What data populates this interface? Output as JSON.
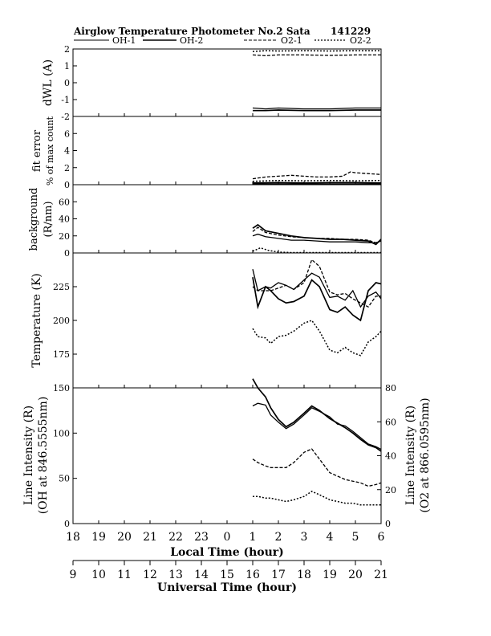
{
  "header": {
    "title": "Airglow Temperature Photometer No.2  Sata",
    "date": "141229"
  },
  "legend": [
    {
      "name": "OH-1",
      "dash": "solid",
      "width": 1
    },
    {
      "name": "OH-2",
      "dash": "solid",
      "width": 1.4
    },
    {
      "name": "O2-1",
      "dash": "dashed",
      "width": 1
    },
    {
      "name": "O2-2",
      "dash": "dotted",
      "width": 1.2
    }
  ],
  "xaxes": {
    "local": {
      "label": "Local Time (hour)",
      "ticks": [
        "18",
        "19",
        "20",
        "21",
        "22",
        "23",
        "0",
        "1",
        "2",
        "3",
        "4",
        "5",
        "6"
      ]
    },
    "universal": {
      "label": "Universal Time (hour)",
      "ticks": [
        "9",
        "10",
        "11",
        "12",
        "13",
        "14",
        "15",
        "16",
        "17",
        "18",
        "19",
        "20",
        "21"
      ]
    }
  },
  "chart_data": [
    {
      "type": "line",
      "panel": "dwl",
      "ylabel": "dWL (A)",
      "ylim": [
        -2,
        2
      ],
      "yticks": [
        "2",
        "1",
        "0",
        "-1",
        "-2"
      ],
      "x_unit": "local hour, 18 = 0, 30 = 6",
      "series": [
        {
          "legend": "OH-1",
          "x": [
            25.0,
            25.5,
            26.0,
            27.0,
            28.0,
            29.0,
            30.0
          ],
          "values": [
            -1.5,
            -1.55,
            -1.5,
            -1.55,
            -1.55,
            -1.5,
            -1.5
          ]
        },
        {
          "legend": "OH-2",
          "x": [
            25.0,
            25.5,
            26.0,
            27.0,
            28.0,
            29.0,
            30.0
          ],
          "values": [
            -1.65,
            -1.65,
            -1.62,
            -1.65,
            -1.65,
            -1.62,
            -1.62
          ]
        },
        {
          "legend": "O2-1",
          "x": [
            25.0,
            25.5,
            26.0,
            27.0,
            28.0,
            29.0,
            30.0
          ],
          "values": [
            1.65,
            1.6,
            1.65,
            1.65,
            1.62,
            1.65,
            1.65
          ]
        },
        {
          "legend": "O2-2",
          "x": [
            25.0,
            25.5,
            26.0,
            27.0,
            28.0,
            29.0,
            30.0
          ],
          "values": [
            1.85,
            1.9,
            1.88,
            1.9,
            1.88,
            1.9,
            1.9
          ]
        }
      ]
    },
    {
      "type": "line",
      "panel": "fit",
      "ylabel": "fit error",
      "ylabel2": "% of max count",
      "ylim": [
        0,
        8
      ],
      "yticks": [
        "6",
        "4",
        "2",
        "0"
      ],
      "series": [
        {
          "legend": "OH-1",
          "x": [
            25.0,
            26.0,
            27.0,
            28.0,
            29.0,
            30.0
          ],
          "values": [
            0.1,
            0.1,
            0.1,
            0.1,
            0.1,
            0.1
          ]
        },
        {
          "legend": "OH-2",
          "x": [
            25.0,
            26.0,
            27.0,
            28.0,
            29.0,
            30.0
          ],
          "values": [
            0.2,
            0.25,
            0.2,
            0.25,
            0.25,
            0.2
          ]
        },
        {
          "legend": "O2-1",
          "x": [
            25.0,
            25.5,
            26.0,
            26.5,
            27.0,
            27.5,
            28.0,
            28.5,
            28.8,
            29.0,
            29.5,
            30.0
          ],
          "values": [
            0.7,
            0.9,
            1.0,
            1.1,
            1.0,
            0.9,
            0.9,
            1.0,
            1.5,
            1.4,
            1.3,
            1.2
          ]
        },
        {
          "legend": "O2-2",
          "x": [
            25.0,
            26.0,
            27.0,
            28.0,
            29.0,
            30.0
          ],
          "values": [
            0.4,
            0.5,
            0.45,
            0.5,
            0.45,
            0.5
          ]
        }
      ]
    },
    {
      "type": "line",
      "panel": "background",
      "ylabel": "background",
      "ylabel2": "(R/nm)",
      "ylim": [
        0,
        80
      ],
      "yticks": [
        "60",
        "40",
        "20",
        "0"
      ],
      "series": [
        {
          "legend": "OH-1",
          "x": [
            25.0,
            25.2,
            25.5,
            26.0,
            26.5,
            27.0,
            27.5,
            28.0,
            28.5,
            29.0,
            29.5,
            29.8,
            30.0
          ],
          "values": [
            20,
            22,
            19,
            17,
            15,
            15,
            14,
            13,
            13,
            13,
            12,
            12,
            14
          ]
        },
        {
          "legend": "OH-2",
          "x": [
            25.0,
            25.2,
            25.5,
            26.0,
            26.5,
            27.0,
            27.5,
            28.0,
            28.5,
            29.0,
            29.5,
            29.8,
            30.0
          ],
          "values": [
            29,
            33,
            26,
            23,
            20,
            18,
            17,
            16,
            16,
            15,
            14,
            10,
            16
          ]
        },
        {
          "legend": "O2-1",
          "x": [
            25.0,
            25.2,
            25.5,
            26.0,
            26.5,
            27.0,
            27.5,
            28.0,
            28.5,
            29.0,
            29.5,
            29.8,
            30.0
          ],
          "values": [
            25,
            30,
            24,
            21,
            19,
            18,
            17,
            17,
            16,
            16,
            15,
            12,
            15
          ]
        },
        {
          "legend": "O2-2",
          "x": [
            25.0,
            25.3,
            25.6,
            26.0,
            26.5,
            27.0,
            27.5,
            28.0,
            28.5,
            29.0,
            29.5,
            30.0
          ],
          "values": [
            2,
            6,
            3,
            1,
            0.5,
            0.5,
            0.5,
            0.5,
            0.5,
            0.5,
            0.5,
            0.5
          ]
        }
      ]
    },
    {
      "type": "line",
      "panel": "temperature",
      "ylabel": "Temperature (K)",
      "ylim": [
        150,
        250
      ],
      "yticks": [
        "225",
        "200",
        "175"
      ],
      "series": [
        {
          "legend": "OH-1",
          "x": [
            25.0,
            25.2,
            25.5,
            25.7,
            26.0,
            26.3,
            26.6,
            27.0,
            27.3,
            27.6,
            28.0,
            28.3,
            28.6,
            28.9,
            29.2,
            29.5,
            29.8,
            30.0
          ],
          "values": [
            238,
            222,
            225,
            224,
            228,
            226,
            223,
            230,
            235,
            232,
            217,
            218,
            215,
            222,
            210,
            218,
            221,
            216
          ]
        },
        {
          "legend": "OH-2",
          "x": [
            25.0,
            25.2,
            25.5,
            25.7,
            26.0,
            26.3,
            26.6,
            27.0,
            27.3,
            27.6,
            28.0,
            28.3,
            28.6,
            28.9,
            29.2,
            29.5,
            29.8,
            30.0
          ],
          "values": [
            232,
            210,
            225,
            222,
            216,
            213,
            214,
            218,
            230,
            225,
            208,
            206,
            210,
            204,
            200,
            222,
            228,
            227
          ]
        },
        {
          "legend": "O2-1",
          "x": [
            25.0,
            25.2,
            25.5,
            25.7,
            26.0,
            26.3,
            26.6,
            27.0,
            27.3,
            27.6,
            28.0,
            28.3,
            28.6,
            28.9,
            29.2,
            29.5,
            29.8,
            30.0
          ],
          "values": [
            225,
            222,
            222,
            222,
            224,
            226,
            223,
            228,
            245,
            240,
            221,
            219,
            220,
            216,
            213,
            210,
            218,
            218
          ]
        },
        {
          "legend": "O2-2",
          "x": [
            25.0,
            25.2,
            25.5,
            25.7,
            26.0,
            26.3,
            26.6,
            27.0,
            27.3,
            27.6,
            28.0,
            28.3,
            28.6,
            28.9,
            29.2,
            29.5,
            29.8,
            30.0
          ],
          "values": [
            194,
            188,
            187,
            183,
            188,
            189,
            192,
            198,
            200,
            192,
            178,
            176,
            180,
            176,
            174,
            184,
            188,
            192
          ]
        }
      ]
    },
    {
      "type": "line",
      "panel": "intensity",
      "ylabel": "Line Intensity (R)",
      "ylabel2": "(OH at 846.5555nm)",
      "y2label": "Line Intensity (R)",
      "y2label2": "(O2 at 866.0595nm)",
      "ylim": [
        0,
        150
      ],
      "yticks": [
        "150",
        "100",
        "50",
        "0"
      ],
      "y2lim": [
        0,
        80
      ],
      "y2ticks": [
        "80",
        "60",
        "40",
        "20",
        "0"
      ],
      "series": [
        {
          "legend": "OH-1",
          "axis": "left",
          "x": [
            25.0,
            25.2,
            25.5,
            25.7,
            26.0,
            26.3,
            26.6,
            27.0,
            27.3,
            27.6,
            28.0,
            28.3,
            28.6,
            28.9,
            29.2,
            29.5,
            29.8,
            30.0
          ],
          "values": [
            130,
            133,
            131,
            120,
            112,
            105,
            110,
            120,
            128,
            124,
            118,
            110,
            108,
            102,
            95,
            88,
            85,
            82
          ]
        },
        {
          "legend": "OH-2",
          "axis": "left",
          "x": [
            25.0,
            25.2,
            25.5,
            25.7,
            26.0,
            26.3,
            26.6,
            27.0,
            27.3,
            27.6,
            28.0,
            28.3,
            28.6,
            28.9,
            29.2,
            29.5,
            29.8,
            30.0
          ],
          "values": [
            160,
            150,
            140,
            128,
            115,
            107,
            112,
            122,
            130,
            125,
            116,
            111,
            106,
            100,
            93,
            87,
            84,
            80
          ]
        },
        {
          "legend": "O2-1",
          "axis": "right",
          "x": [
            25.0,
            25.2,
            25.5,
            25.7,
            26.0,
            26.3,
            26.6,
            27.0,
            27.3,
            27.6,
            28.0,
            28.3,
            28.6,
            28.9,
            29.2,
            29.5,
            29.8,
            30.0
          ],
          "values": [
            38,
            36,
            34,
            33,
            33,
            33,
            36,
            42,
            44,
            38,
            30,
            28,
            26,
            25,
            24,
            22,
            23,
            24
          ]
        },
        {
          "legend": "O2-2",
          "axis": "right",
          "x": [
            25.0,
            25.2,
            25.5,
            25.7,
            26.0,
            26.3,
            26.6,
            27.0,
            27.3,
            27.6,
            28.0,
            28.3,
            28.6,
            28.9,
            29.2,
            29.5,
            29.8,
            30.0
          ],
          "values": [
            16,
            16,
            15,
            15,
            14,
            13,
            14,
            16,
            19,
            17,
            14,
            13,
            12,
            12,
            11,
            11,
            11,
            11
          ]
        }
      ]
    }
  ]
}
